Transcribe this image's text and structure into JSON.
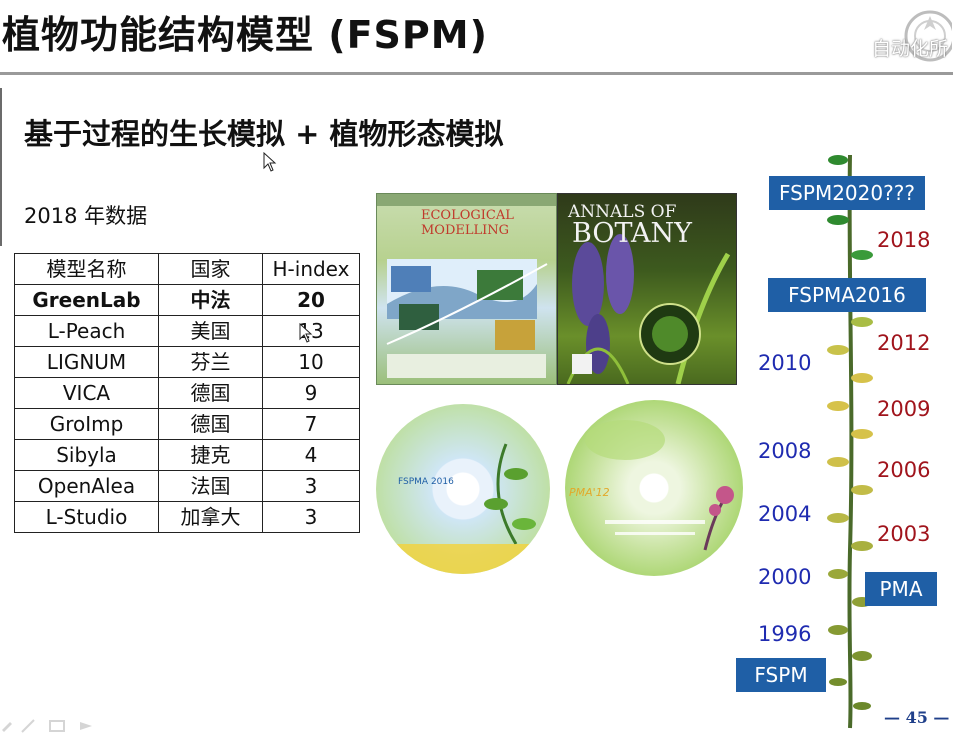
{
  "slide": {
    "title": "植物功能结构模型 (FSPM)",
    "subtitle": "基于过程的生长模拟 + 植物形态模拟",
    "caption": "2018 年数据",
    "page_number": "— 45 —",
    "logo_text": "自动化所"
  },
  "table": {
    "headers": [
      "模型名称",
      "国家",
      "H-index"
    ],
    "rows": [
      [
        "GreenLab",
        "中法",
        "20"
      ],
      [
        "L-Peach",
        "美国",
        "13"
      ],
      [
        "LIGNUM",
        "芬兰",
        "10"
      ],
      [
        "VICA",
        "德国",
        "9"
      ],
      [
        "GroImp",
        "德国",
        "7"
      ],
      [
        "Sibyla",
        "捷克",
        "4"
      ],
      [
        "OpenAlea",
        "法国",
        "3"
      ],
      [
        "L-Studio",
        "加拿大",
        "3"
      ]
    ]
  },
  "images": {
    "cover1": {
      "title_line1": "ECOLOGICAL",
      "title_line2": "MODELLING",
      "icon": "journal-cover"
    },
    "cover2": {
      "title_line1": "ANNALS OF",
      "title_line2": "BOTANY",
      "icon": "journal-cover"
    },
    "disc1": {
      "label": "FSPMA 2016",
      "icon": "conference-disc"
    },
    "disc2": {
      "label": "PMA'12",
      "icon": "conference-disc"
    }
  },
  "timeline": {
    "milestones": [
      "FSPM2020???",
      "FSPMA2016",
      "PMA",
      "FSPM"
    ],
    "years_left": [
      "2010",
      "2008",
      "2004",
      "2000",
      "1996"
    ],
    "years_right": [
      "2018",
      "2012",
      "2009",
      "2006",
      "2003"
    ]
  },
  "colors": {
    "milestone_bg": "#1f5fa6",
    "year_blue": "#1f2bb0",
    "year_red": "#a0141c",
    "leaf_green": "#2f8a2f",
    "leaf_yellow": "#d6c24a",
    "stem": "#4a6a2a"
  }
}
